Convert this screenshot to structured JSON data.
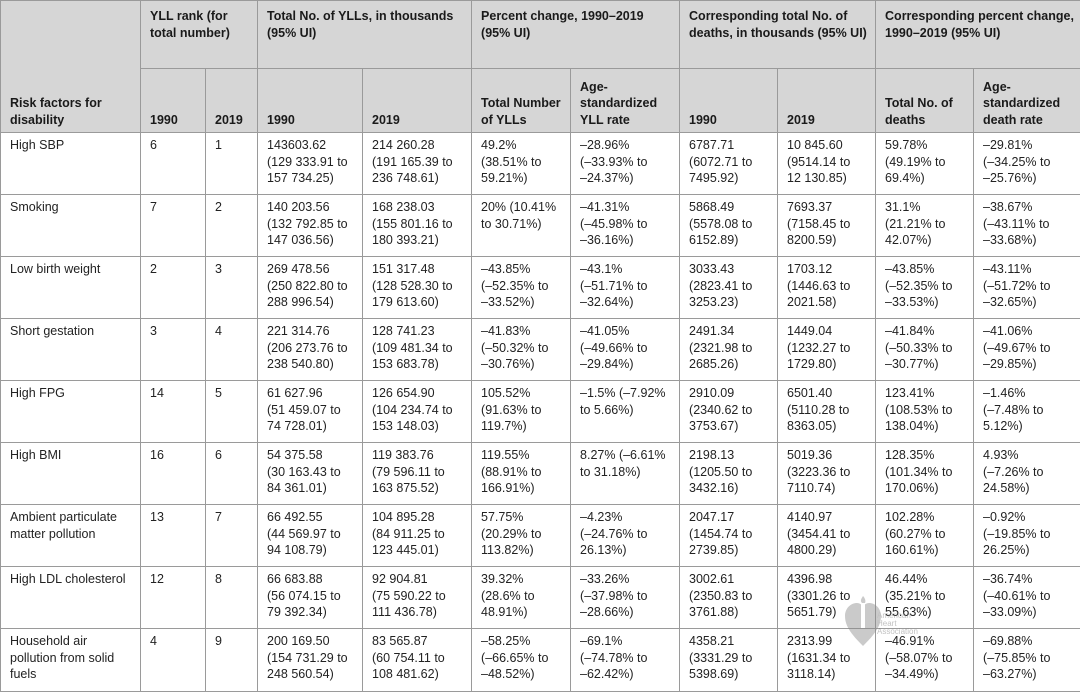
{
  "table": {
    "header": {
      "risk_factor": "Risk factors for disability",
      "yll_rank": "YLL rank (for total number)",
      "total_ylls": "Total No. of YLLs, in thousands (95% UI)",
      "pct_change": "Percent change, 1990–2019 (95% UI)",
      "deaths": "Corresponding total No. of deaths, in thousands (95% UI)",
      "deaths_pct": "Corresponding percent change, 1990–2019 (95% UI)",
      "year_1990": "1990",
      "year_2019": "2019",
      "total_number_ylls": "Total Number of YLLs",
      "age_std_yll": "Age-standardized YLL rate",
      "total_deaths": "Total No. of deaths",
      "age_std_death": "Age-standardized death rate"
    },
    "rows": [
      {
        "factor": "High SBP",
        "rank1990": "6",
        "rank2019": "1",
        "yll1990": [
          "143603.62",
          "(129 333.91 to",
          "157 734.25)"
        ],
        "yll2019": [
          "214 260.28",
          "(191 165.39 to",
          "236 748.61)"
        ],
        "pct_total": [
          "49.2%",
          "(38.51% to",
          "59.21%)"
        ],
        "pct_age": [
          "–28.96%",
          "(–33.93% to",
          "–24.37%)"
        ],
        "d1990": [
          "6787.71",
          "(6072.71 to",
          "7495.92)"
        ],
        "d2019": [
          "10 845.60",
          "(9514.14 to",
          "12 130.85)"
        ],
        "dpct_total": [
          "59.78%",
          "(49.19% to",
          "69.4%)"
        ],
        "dpct_age": [
          "–29.81%",
          "(–34.25% to",
          "–25.76%)"
        ]
      },
      {
        "factor": "Smoking",
        "rank1990": "7",
        "rank2019": "2",
        "yll1990": [
          "140 203.56",
          "(132 792.85 to",
          "147 036.56)"
        ],
        "yll2019": [
          "168 238.03",
          "(155 801.16 to",
          "180 393.21)"
        ],
        "pct_total": [
          "20% (10.41%",
          "to 30.71%)"
        ],
        "pct_age": [
          "–41.31%",
          "(–45.98% to",
          "–36.16%)"
        ],
        "d1990": [
          "5868.49",
          "(5578.08 to",
          "6152.89)"
        ],
        "d2019": [
          "7693.37",
          "(7158.45 to",
          "8200.59)"
        ],
        "dpct_total": [
          "31.1%",
          "(21.21% to",
          "42.07%)"
        ],
        "dpct_age": [
          "–38.67%",
          "(–43.11% to",
          "–33.68%)"
        ]
      },
      {
        "factor": "Low birth weight",
        "rank1990": "2",
        "rank2019": "3",
        "yll1990": [
          "269 478.56",
          "(250 822.80 to",
          "288 996.54)"
        ],
        "yll2019": [
          "151 317.48",
          "(128 528.30 to",
          "179 613.60)"
        ],
        "pct_total": [
          "–43.85%",
          "(–52.35% to",
          "–33.52%)"
        ],
        "pct_age": [
          "–43.1%",
          "(–51.71% to",
          "–32.64%)"
        ],
        "d1990": [
          "3033.43",
          "(2823.41 to",
          "3253.23)"
        ],
        "d2019": [
          "1703.12",
          "(1446.63 to",
          "2021.58)"
        ],
        "dpct_total": [
          "–43.85%",
          "(–52.35% to",
          "–33.53%)"
        ],
        "dpct_age": [
          "–43.11%",
          "(–51.72% to",
          "–32.65%)"
        ]
      },
      {
        "factor": "Short gestation",
        "rank1990": "3",
        "rank2019": "4",
        "yll1990": [
          "221 314.76",
          "(206 273.76 to",
          "238 540.80)"
        ],
        "yll2019": [
          "128 741.23",
          "(109 481.34 to",
          "153 683.78)"
        ],
        "pct_total": [
          "–41.83%",
          "(–50.32% to",
          "–30.76%)"
        ],
        "pct_age": [
          "–41.05%",
          "(–49.66% to",
          "–29.84%)"
        ],
        "d1990": [
          "2491.34",
          "(2321.98 to",
          "2685.26)"
        ],
        "d2019": [
          "1449.04",
          "(1232.27 to",
          "1729.80)"
        ],
        "dpct_total": [
          "–41.84%",
          "(–50.33% to",
          "–30.77%)"
        ],
        "dpct_age": [
          "–41.06%",
          "(–49.67% to",
          "–29.85%)"
        ]
      },
      {
        "factor": "High FPG",
        "rank1990": "14",
        "rank2019": "5",
        "yll1990": [
          "61 627.96",
          "(51 459.07 to",
          "74 728.01)"
        ],
        "yll2019": [
          "126 654.90",
          "(104 234.74 to",
          "153 148.03)"
        ],
        "pct_total": [
          "105.52%",
          "(91.63% to",
          "119.7%)"
        ],
        "pct_age": [
          "–1.5% (–7.92%",
          "to 5.66%)"
        ],
        "d1990": [
          "2910.09",
          "(2340.62 to",
          "3753.67)"
        ],
        "d2019": [
          "6501.40",
          "(5110.28 to",
          "8363.05)"
        ],
        "dpct_total": [
          "123.41%",
          "(108.53% to",
          "138.04%)"
        ],
        "dpct_age": [
          "–1.46%",
          "(–7.48% to",
          "5.12%)"
        ]
      },
      {
        "factor": "High BMI",
        "rank1990": "16",
        "rank2019": "6",
        "yll1990": [
          "54 375.58",
          "(30 163.43 to",
          "84 361.01)"
        ],
        "yll2019": [
          "119 383.76",
          "(79 596.11 to",
          "163 875.52)"
        ],
        "pct_total": [
          "119.55%",
          "(88.91% to",
          "166.91%)"
        ],
        "pct_age": [
          "8.27% (–6.61%",
          "to 31.18%)"
        ],
        "d1990": [
          "2198.13",
          "(1205.50 to",
          "3432.16)"
        ],
        "d2019": [
          "5019.36",
          "(3223.36 to",
          "7110.74)"
        ],
        "dpct_total": [
          "128.35%",
          "(101.34% to",
          "170.06%)"
        ],
        "dpct_age": [
          "4.93%",
          "(–7.26% to",
          "24.58%)"
        ]
      },
      {
        "factor": "Ambient particulate matter pollution",
        "rank1990": "13",
        "rank2019": "7",
        "yll1990": [
          "66 492.55",
          "(44 569.97 to",
          "94 108.79)"
        ],
        "yll2019": [
          "104 895.28",
          "(84 911.25 to",
          "123 445.01)"
        ],
        "pct_total": [
          "57.75%",
          "(20.29% to",
          "113.82%)"
        ],
        "pct_age": [
          "–4.23%",
          "(–24.76% to",
          "26.13%)"
        ],
        "d1990": [
          "2047.17",
          "(1454.74 to",
          "2739.85)"
        ],
        "d2019": [
          "4140.97",
          "(3454.41 to",
          "4800.29)"
        ],
        "dpct_total": [
          "102.28%",
          "(60.27% to",
          "160.61%)"
        ],
        "dpct_age": [
          "–0.92%",
          "(–19.85% to",
          "26.25%)"
        ]
      },
      {
        "factor": "High LDL cholesterol",
        "rank1990": "12",
        "rank2019": "8",
        "yll1990": [
          "66 683.88",
          "(56 074.15 to",
          "79 392.34)"
        ],
        "yll2019": [
          "92 904.81",
          "(75 590.22 to",
          "111 436.78)"
        ],
        "pct_total": [
          "39.32%",
          "(28.6% to",
          "48.91%)"
        ],
        "pct_age": [
          "–33.26%",
          "(–37.98% to",
          "–28.66%)"
        ],
        "d1990": [
          "3002.61",
          "(2350.83 to",
          "3761.88)"
        ],
        "d2019": [
          "4396.98",
          "(3301.26 to",
          "5651.79)"
        ],
        "dpct_total": [
          "46.44%",
          "(35.21% to",
          "55.63%)"
        ],
        "dpct_age": [
          "–36.74%",
          "(–40.61% to",
          "–33.09%)"
        ]
      },
      {
        "factor": "Household air pollution from solid fuels",
        "rank1990": "4",
        "rank2019": "9",
        "yll1990": [
          "200 169.50",
          "(154 731.29 to",
          "248 560.54)"
        ],
        "yll2019": [
          "83 565.87",
          "(60 754.11 to",
          "108 481.62)"
        ],
        "pct_total": [
          "–58.25%",
          "(–66.65% to",
          "–48.52%)"
        ],
        "pct_age": [
          "–69.1%",
          "(–74.78% to",
          "–62.42%)"
        ],
        "d1990": [
          "4358.21",
          "(3331.29 to",
          "5398.69)"
        ],
        "d2019": [
          "2313.99",
          "(1631.34 to",
          "3118.14)"
        ],
        "dpct_total": [
          "–46.91%",
          "(–58.07% to",
          "–34.49%)"
        ],
        "dpct_age": [
          "–69.88%",
          "(–75.85% to",
          "–63.27%)"
        ]
      }
    ]
  },
  "watermark": {
    "icon": "heart-torch-logo",
    "text_line1": "American",
    "text_line2": "Heart",
    "text_line3": "Association",
    "color": "#9a9a9a"
  }
}
